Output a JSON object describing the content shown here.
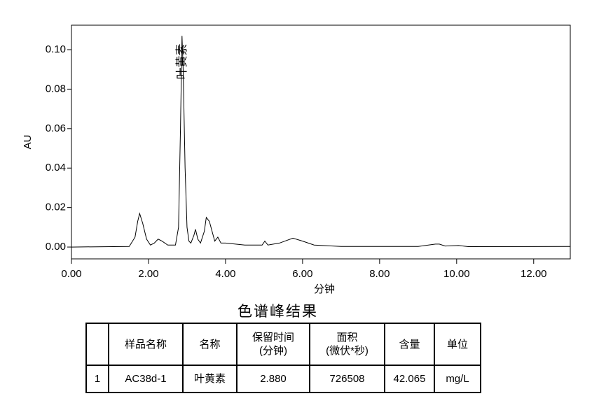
{
  "chart_data": {
    "type": "line",
    "x_label": "分钟",
    "y_label": "AU",
    "color": "#000000",
    "x": [
      0,
      1.5,
      1.65,
      1.72,
      1.77,
      1.85,
      1.95,
      2.05,
      2.15,
      2.25,
      2.35,
      2.5,
      2.7,
      2.78,
      2.83,
      2.87,
      2.9,
      2.95,
      3.0,
      3.05,
      3.1,
      3.18,
      3.22,
      3.28,
      3.35,
      3.45,
      3.5,
      3.58,
      3.65,
      3.72,
      3.8,
      3.88,
      4.0,
      4.5,
      4.95,
      5.02,
      5.1,
      5.4,
      5.75,
      6.0,
      6.3,
      7.0,
      9.0,
      9.45,
      9.55,
      9.7,
      10.05,
      10.3,
      12.95
    ],
    "values": [
      0,
      0.0003,
      0.005,
      0.013,
      0.017,
      0.012,
      0.004,
      0.001,
      0.002,
      0.004,
      0.003,
      0.001,
      0.001,
      0.01,
      0.06,
      0.107,
      0.09,
      0.04,
      0.01,
      0.003,
      0.002,
      0.006,
      0.009,
      0.004,
      0.002,
      0.008,
      0.015,
      0.013,
      0.008,
      0.003,
      0.005,
      0.002,
      0.002,
      0.001,
      0.001,
      0.003,
      0.001,
      0.002,
      0.0045,
      0.003,
      0.001,
      0.0003,
      0.0003,
      0.0015,
      0.0015,
      0.0005,
      0.0008,
      0.0002,
      0.0003
    ],
    "xlim": [
      0,
      12.95
    ],
    "ylim": [
      -0.006,
      0.1124
    ],
    "xticks": [
      {
        "value": 0,
        "label": "0.00"
      },
      {
        "value": 2,
        "label": "2.00"
      },
      {
        "value": 4,
        "label": "4.00"
      },
      {
        "value": 6,
        "label": "6.00"
      },
      {
        "value": 8,
        "label": "8.00"
      },
      {
        "value": 10,
        "label": "10.00"
      },
      {
        "value": 12,
        "label": "12.00"
      }
    ],
    "yticks": [
      {
        "value": 0,
        "label": "0.00"
      },
      {
        "value": 0.02,
        "label": "0.02"
      },
      {
        "value": 0.04,
        "label": "0.04"
      },
      {
        "value": 0.06,
        "label": "0.06"
      },
      {
        "value": 0.08,
        "label": "0.08"
      },
      {
        "value": 0.1,
        "label": "0.10"
      }
    ],
    "annotations": [
      {
        "text": "叶黄素",
        "x": 2.88
      }
    ]
  },
  "table": {
    "title": "色谱峰结果",
    "headers": [
      "",
      "样品名称",
      "名称",
      "保留时间\n(分钟)",
      "面积\n(微伏*秒)",
      "含量",
      "单位"
    ],
    "rows": [
      [
        "1",
        "AC38d-1",
        "叶黄素",
        "2.880",
        "726508",
        "42.065",
        "mg/L"
      ]
    ]
  }
}
